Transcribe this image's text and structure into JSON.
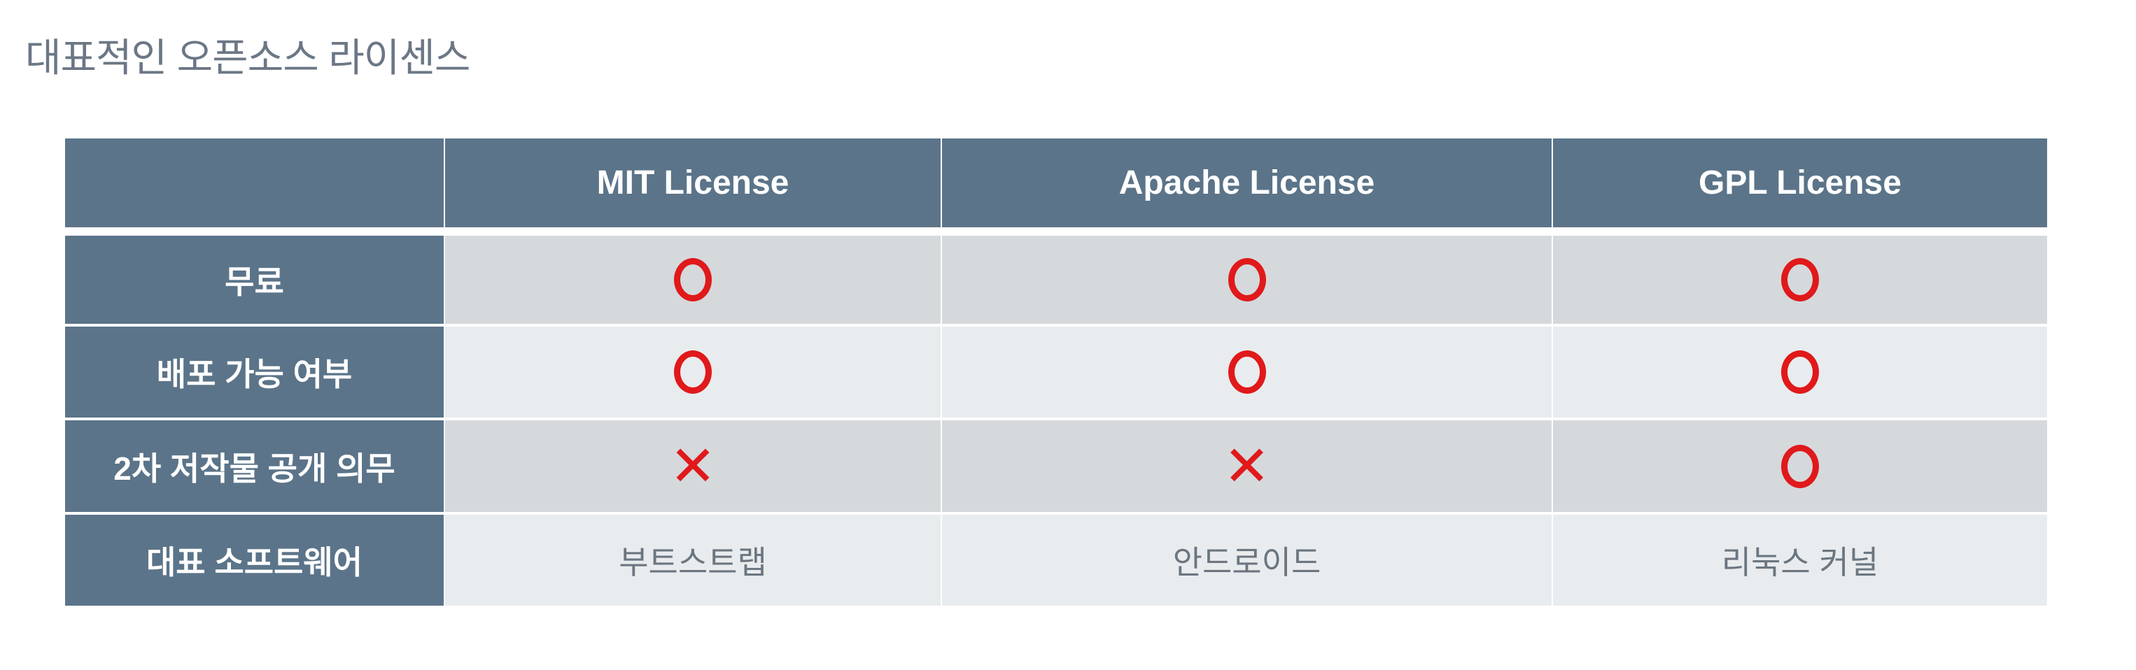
{
  "title": "대표적인 오픈소스 라이센스",
  "table": {
    "columns": [
      "",
      "MIT License",
      "Apache License",
      "GPL License"
    ],
    "rows": [
      {
        "label": "무료",
        "values": [
          "O",
          "O",
          "O"
        ]
      },
      {
        "label": "배포 가능 여부",
        "values": [
          "O",
          "O",
          "O"
        ]
      },
      {
        "label": "2차 저작물 공개 의무",
        "values": [
          "X",
          "X",
          "O"
        ]
      },
      {
        "label": "대표 소프트웨어",
        "values": [
          "부트스트랩",
          "안드로이드",
          "리눅스 커널"
        ]
      }
    ]
  },
  "colors": {
    "header": "#5b7489",
    "mark": "#e0191b",
    "row_dark": "#d5d9dc",
    "row_light": "#e9ecee"
  }
}
